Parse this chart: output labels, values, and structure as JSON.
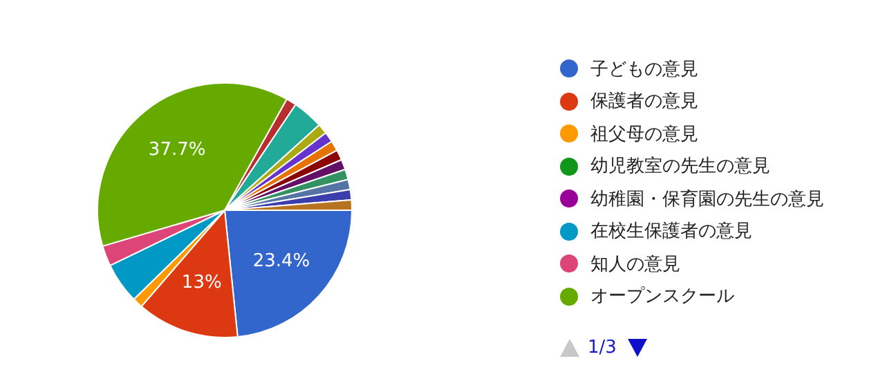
{
  "chart_data": {
    "type": "pie",
    "categories": [
      "子どもの意見",
      "保護者の意見",
      "祖父母の意見",
      "幼児教室の先生の意見",
      "幼稚園・保育園の先生の意見",
      "在校生保護者の意見",
      "知人の意見",
      "オープンスクール",
      null,
      null,
      null,
      null,
      null,
      null,
      null,
      null,
      null,
      null,
      null
    ],
    "values": [
      23.4,
      13,
      1.3,
      0,
      0,
      5.2,
      2.6,
      37.7,
      1.3,
      3.9,
      1.3,
      1.3,
      1.3,
      1.3,
      1.3,
      1.3,
      1.3,
      1.3,
      1.3
    ],
    "colors": [
      "#3366cc",
      "#dc3912",
      "#ff9900",
      "#109618",
      "#990099",
      "#0099c6",
      "#dd4477",
      "#66aa00",
      "#b82e2e",
      "#22aa99",
      "#aaaa11",
      "#6633cc",
      "#e67300",
      "#8b0707",
      "#651067",
      "#329262",
      "#5574a6",
      "#3b3eac",
      "#b77322"
    ],
    "value_labels": [
      "23.4%",
      "13%",
      null,
      null,
      null,
      null,
      null,
      "37.7%",
      null,
      null,
      null,
      null,
      null,
      null,
      null,
      null,
      null,
      null,
      null
    ],
    "legend": "right",
    "annotations": [
      "1/3"
    ]
  }
}
